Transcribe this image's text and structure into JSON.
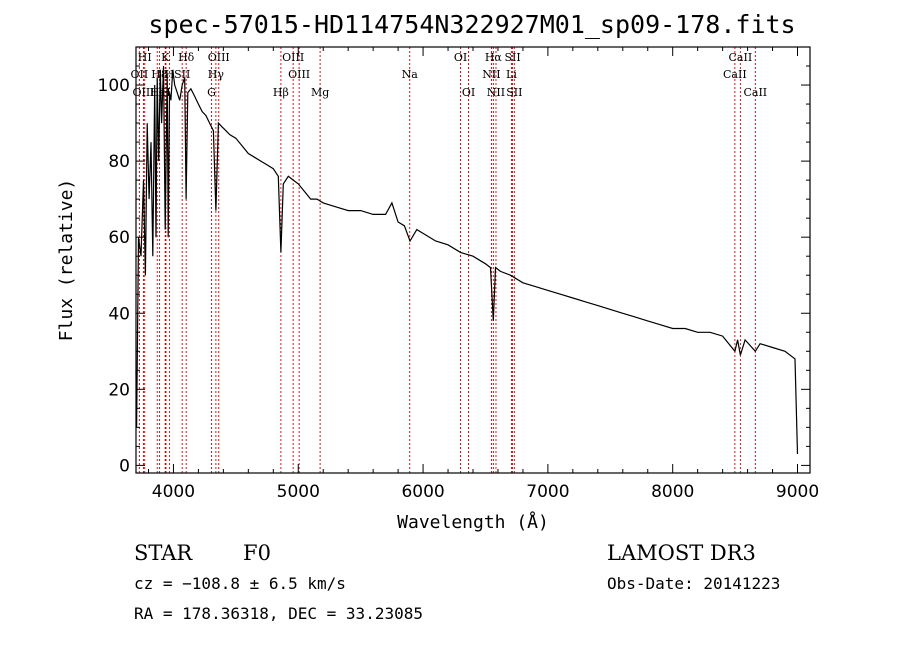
{
  "chart_data": {
    "type": "line",
    "title": "spec-57015-HD114754N322927M01_sp09-178.fits",
    "xlabel": "Wavelength (Å)",
    "ylabel": "Flux (relative)",
    "xlim": [
      3700,
      9100
    ],
    "ylim": [
      -2,
      110
    ],
    "xticks": [
      4000,
      5000,
      6000,
      7000,
      8000,
      9000
    ],
    "yticks": [
      0,
      20,
      40,
      60,
      80,
      100
    ],
    "series": [
      {
        "name": "flux",
        "x": [
          3700,
          3705,
          3720,
          3740,
          3760,
          3775,
          3790,
          3805,
          3820,
          3835,
          3850,
          3860,
          3870,
          3882,
          3895,
          3905,
          3920,
          3934,
          3950,
          3958,
          3968,
          3980,
          3995,
          4010,
          4030,
          4050,
          4070,
          4090,
          4101,
          4115,
          4140,
          4170,
          4200,
          4230,
          4260,
          4290,
          4320,
          4340,
          4360,
          4390,
          4420,
          4450,
          4500,
          4550,
          4600,
          4650,
          4700,
          4750,
          4800,
          4840,
          4861,
          4880,
          4920,
          4960,
          5000,
          5050,
          5100,
          5150,
          5200,
          5300,
          5400,
          5500,
          5600,
          5700,
          5750,
          5800,
          5850,
          5895,
          5950,
          6000,
          6100,
          6200,
          6300,
          6400,
          6500,
          6540,
          6563,
          6580,
          6620,
          6700,
          6800,
          6900,
          7000,
          7100,
          7200,
          7300,
          7400,
          7500,
          7600,
          7700,
          7800,
          7900,
          8000,
          8100,
          8200,
          8300,
          8400,
          8498,
          8520,
          8542,
          8580,
          8662,
          8700,
          8800,
          8900,
          8980,
          9000
        ],
        "y": [
          25,
          10,
          60,
          55,
          75,
          50,
          90,
          70,
          85,
          55,
          100,
          60,
          102,
          80,
          104,
          90,
          105,
          62,
          103,
          60,
          98,
          96,
          104,
          100,
          98,
          96,
          100,
          102,
          70,
          98,
          99,
          97,
          95,
          93,
          92,
          90,
          88,
          67,
          90,
          89,
          88,
          87,
          86,
          84,
          82,
          81,
          80,
          79,
          78,
          76,
          56,
          74,
          76,
          75,
          74,
          72,
          70,
          70,
          69,
          68,
          67,
          67,
          66,
          66,
          69,
          64,
          63,
          59,
          62,
          61,
          59,
          58,
          56,
          55,
          53,
          52,
          38,
          52,
          51,
          50,
          48,
          47,
          46,
          45,
          44,
          43,
          42,
          41,
          40,
          39,
          38,
          37,
          36,
          36,
          35,
          35,
          34,
          30,
          33,
          29,
          33,
          30,
          32,
          31,
          30,
          28,
          3
        ]
      }
    ],
    "lines": [
      {
        "name": "HI",
        "x": 3770,
        "row": 0
      },
      {
        "name": "OII",
        "x": 3727,
        "row": 1
      },
      {
        "name": "OIII",
        "x": 3760,
        "row": 2
      },
      {
        "name": "H8",
        "x": 3889,
        "row": 1
      },
      {
        "name": "K",
        "x": 3934,
        "row": 0
      },
      {
        "name": "Hε",
        "x": 3870,
        "row": 2
      },
      {
        "name": "H",
        "x": 3969,
        "row": 1
      },
      {
        "name": "H",
        "x": 3940,
        "row": 2
      },
      {
        "name": "Hδ",
        "x": 4102,
        "row": 0
      },
      {
        "name": "SII",
        "x": 4070,
        "row": 1
      },
      {
        "name": "OIII",
        "x": 4363,
        "row": 0
      },
      {
        "name": "Hγ",
        "x": 4340,
        "row": 1
      },
      {
        "name": "G",
        "x": 4305,
        "row": 2
      },
      {
        "name": "OIII",
        "x": 4959,
        "row": 0
      },
      {
        "name": "OIII",
        "x": 5007,
        "row": 1
      },
      {
        "name": "Hβ",
        "x": 4861,
        "row": 2
      },
      {
        "name": "Mg",
        "x": 5175,
        "row": 2
      },
      {
        "name": "Na",
        "x": 5893,
        "row": 1
      },
      {
        "name": "OI",
        "x": 6300,
        "row": 0
      },
      {
        "name": "OI",
        "x": 6364,
        "row": 2
      },
      {
        "name": "Hα",
        "x": 6563,
        "row": 0
      },
      {
        "name": "NII",
        "x": 6548,
        "row": 1
      },
      {
        "name": "NII",
        "x": 6584,
        "row": 2
      },
      {
        "name": "SII",
        "x": 6717,
        "row": 0
      },
      {
        "name": "Li",
        "x": 6708,
        "row": 1
      },
      {
        "name": "SII",
        "x": 6731,
        "row": 2
      },
      {
        "name": "CaII",
        "x": 8542,
        "row": 0
      },
      {
        "name": "CaII",
        "x": 8498,
        "row": 1
      },
      {
        "name": "CaII",
        "x": 8662,
        "row": 2
      }
    ]
  },
  "info": {
    "class_label": "STAR",
    "subclass": "F0",
    "survey": "LAMOST DR3",
    "cz": "cz = −108.8 ± 6.5 km/s",
    "obs_date": "Obs-Date: 20141223",
    "coords": "RA = 178.36318, DEC =  33.23085"
  },
  "style": {
    "line_color": "#000000",
    "marker_color": "#cc0000"
  }
}
